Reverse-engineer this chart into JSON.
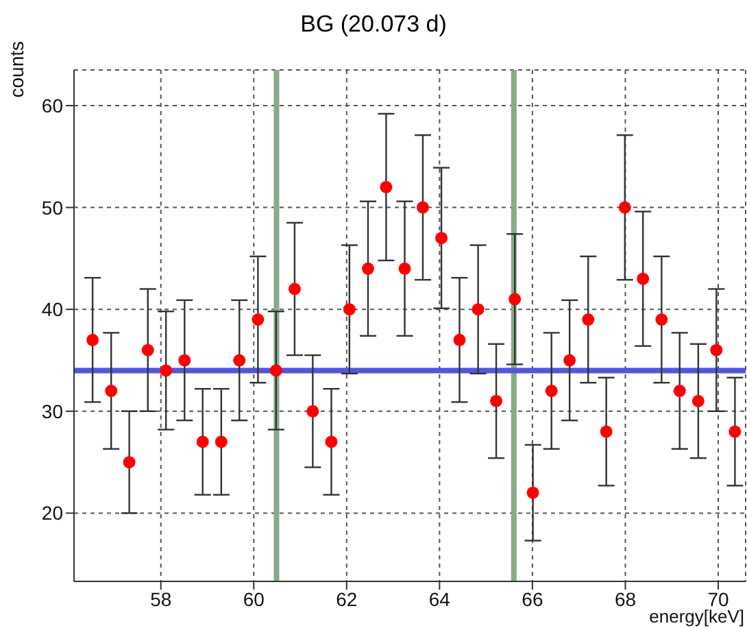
{
  "chart_data": {
    "type": "scatter",
    "title": "BG (20.073 d)",
    "xlabel": "energy[keV]",
    "ylabel": "counts",
    "x": [
      56.53,
      56.93,
      57.32,
      57.72,
      58.11,
      58.51,
      58.9,
      59.3,
      59.69,
      60.09,
      60.48,
      60.88,
      61.27,
      61.67,
      62.06,
      62.46,
      62.85,
      63.25,
      63.64,
      64.04,
      64.43,
      64.83,
      65.22,
      65.62,
      66.01,
      66.41,
      66.8,
      67.2,
      67.59,
      67.99,
      68.38,
      68.78,
      69.17,
      69.57,
      69.96,
      70.36
    ],
    "series": [
      {
        "color": "#ff0000",
        "values": [
          37,
          32,
          25,
          36,
          34,
          35,
          27,
          27,
          35,
          39,
          34,
          42,
          30,
          27,
          40,
          44,
          52,
          44,
          50,
          47,
          37,
          40,
          31,
          41,
          22,
          32,
          35,
          39,
          28,
          50,
          43,
          39,
          32,
          31,
          36,
          28
        ],
        "errors": [
          6.1,
          5.7,
          5,
          6,
          5.8,
          5.9,
          5.2,
          5.2,
          5.9,
          6.2,
          5.8,
          6.5,
          5.5,
          5.2,
          6.3,
          6.6,
          7.2,
          6.6,
          7.1,
          6.9,
          6.1,
          6.3,
          5.6,
          6.4,
          4.7,
          5.7,
          5.9,
          6.2,
          5.3,
          7.1,
          6.6,
          6.2,
          5.7,
          5.6,
          6,
          5.3
        ]
      }
    ],
    "xlim": [
      56.13,
      70.59
    ],
    "xticks": [
      58,
      60,
      62,
      64,
      66,
      68,
      70
    ],
    "ylim": [
      13.3,
      63.5
    ],
    "yticks": [
      20,
      30,
      40,
      50,
      60
    ],
    "grid": true,
    "marker": "circle",
    "ref_lines": [
      {
        "axis": "x",
        "value": 60.49,
        "color": "#88aa88"
      },
      {
        "axis": "x",
        "value": 65.6,
        "color": "#88aa88"
      },
      {
        "axis": "y",
        "value": 34,
        "color": "#5555dd"
      }
    ]
  }
}
